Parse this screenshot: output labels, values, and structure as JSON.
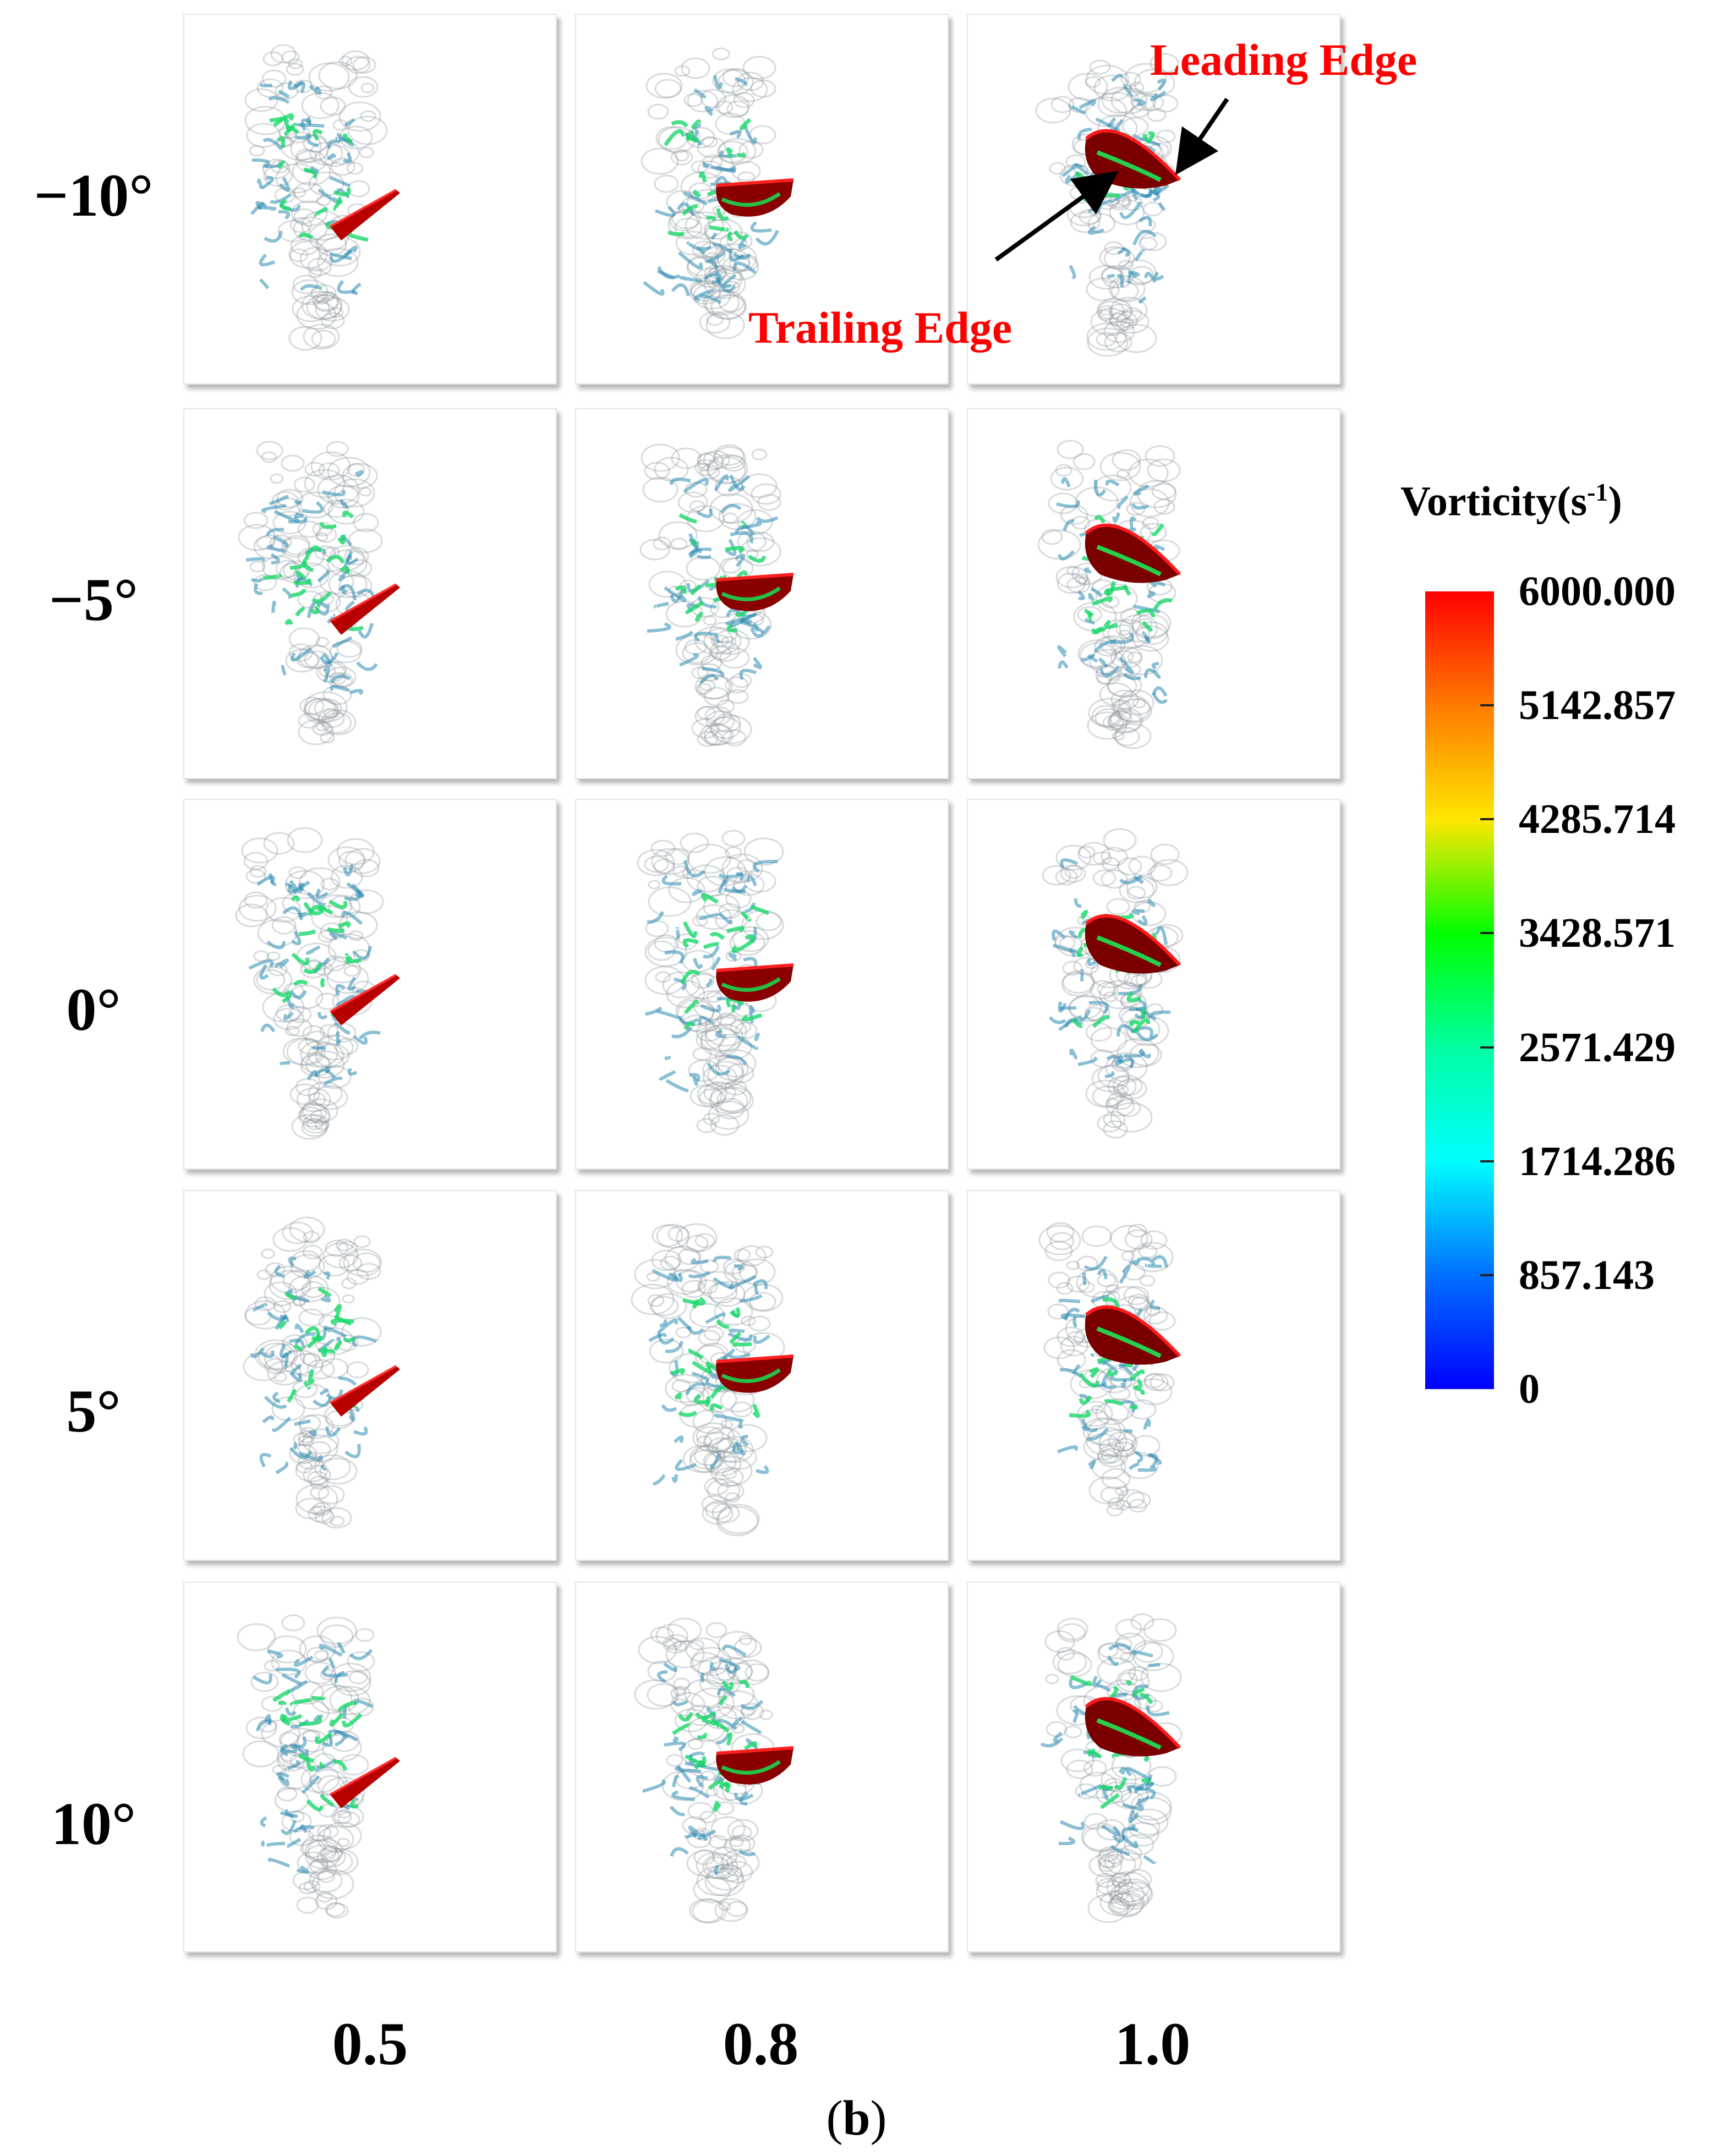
{
  "rows": [
    "−10°",
    "−5°",
    "0°",
    "5°",
    "10°"
  ],
  "columns": [
    "0.5",
    "0.8",
    "1.0"
  ],
  "caption": {
    "open": "(",
    "letter": "b",
    "close": ")"
  },
  "annotations": {
    "leading_edge": "Leading Edge",
    "trailing_edge": "Trailing Edge"
  },
  "colorbar": {
    "title": "Vorticity(s",
    "title_sup": "-1",
    "title_end": ")",
    "tick_labels": [
      "6000.000",
      "5142.857",
      "4285.714",
      "3428.571",
      "2571.429",
      "1714.286",
      "857.143",
      "0"
    ],
    "colors": [
      "#ff0000",
      "#ff7a00",
      "#ffe600",
      "#00ff00",
      "#00ffa0",
      "#00ffff",
      "#0070ff",
      "#0000ff"
    ]
  }
}
